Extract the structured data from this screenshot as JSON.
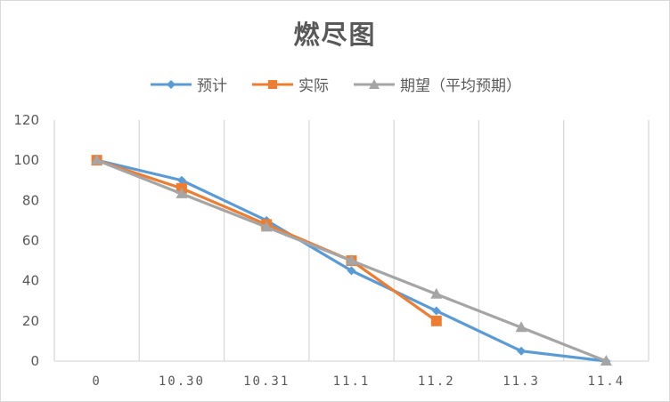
{
  "chart_data": {
    "type": "line",
    "title": "燃尽图",
    "xlabel": "",
    "ylabel": "",
    "categories": [
      "0",
      "10.30",
      "10.31",
      "11.1",
      "11.2",
      "11.3",
      "11.4"
    ],
    "ylim": [
      0,
      120
    ],
    "yticks": [
      0,
      20,
      40,
      60,
      80,
      100,
      120
    ],
    "grid": "vertical",
    "legend_position": "top",
    "series": [
      {
        "name": "预计",
        "color": "#5B9BD5",
        "marker": "diamond",
        "values": [
          100,
          90,
          70,
          45,
          25,
          5,
          0
        ]
      },
      {
        "name": "实际",
        "color": "#ED7D31",
        "marker": "square",
        "values": [
          100,
          86,
          68,
          50,
          20,
          null,
          null
        ]
      },
      {
        "name": "期望（平均预期）",
        "color": "#A5A5A5",
        "marker": "triangle",
        "values": [
          100,
          83.3,
          66.7,
          50,
          33.3,
          16.7,
          0
        ]
      }
    ]
  },
  "legend": {
    "items": [
      {
        "label": "预计",
        "color": "#5B9BD5"
      },
      {
        "label": "实际",
        "color": "#ED7D31"
      },
      {
        "label": "期望（平均预期）",
        "color": "#A5A5A5"
      }
    ]
  }
}
